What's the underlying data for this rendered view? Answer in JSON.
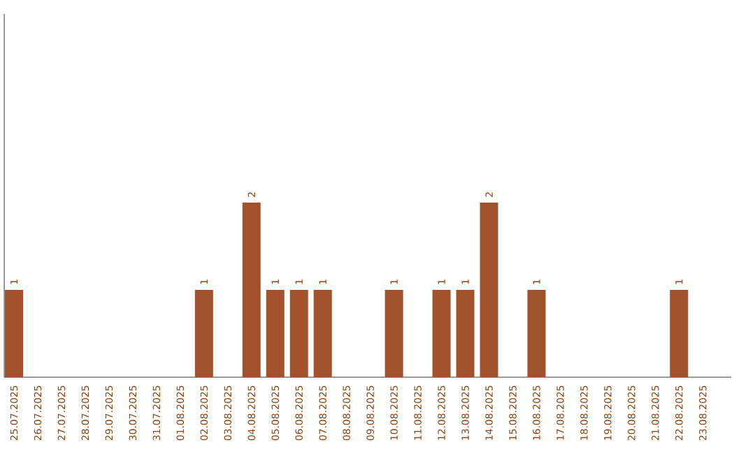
{
  "chart_data": {
    "type": "bar",
    "categories": [
      "25.07.2025",
      "26.07.2025",
      "27.07.2025",
      "28.07.2025",
      "29.07.2025",
      "30.07.2025",
      "31.07.2025",
      "01.08.2025",
      "02.08.2025",
      "03.08.2025",
      "04.08.2025",
      "05.08.2025",
      "06.08.2025",
      "07.08.2025",
      "08.08.2025",
      "09.08.2025",
      "10.08.2025",
      "11.08.2025",
      "12.08.2025",
      "13.08.2025",
      "14.08.2025",
      "15.08.2025",
      "16.08.2025",
      "17.08.2025",
      "18.08.2025",
      "19.08.2025",
      "20.08.2025",
      "21.08.2025",
      "22.08.2025",
      "23.08.2025"
    ],
    "values": [
      1,
      0,
      0,
      0,
      0,
      0,
      0,
      0,
      1,
      0,
      2,
      1,
      1,
      1,
      0,
      0,
      1,
      0,
      1,
      1,
      2,
      0,
      1,
      0,
      0,
      0,
      0,
      0,
      1,
      0
    ],
    "value_labels": [
      "1",
      null,
      null,
      null,
      null,
      null,
      null,
      null,
      "1",
      null,
      "2",
      "1",
      "1",
      "1",
      null,
      null,
      "1",
      null,
      "1",
      "1",
      "2",
      null,
      "1",
      null,
      null,
      null,
      null,
      null,
      "1",
      null
    ],
    "color": "#a0522d",
    "tick_labels": "x"
  }
}
